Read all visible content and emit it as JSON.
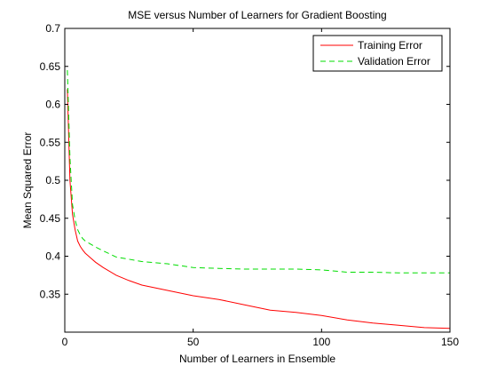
{
  "chart_data": {
    "type": "line",
    "title": "MSE versus Number of Learners for Gradient Boosting",
    "xlabel": "Number of Learners in Ensemble",
    "ylabel": "Mean Squared Error",
    "xlim": [
      0,
      150
    ],
    "ylim": [
      0.3,
      0.7
    ],
    "x_ticks": [
      0,
      50,
      100,
      150
    ],
    "x_tick_labels": [
      "0",
      "50",
      "100",
      "150"
    ],
    "y_ticks": [
      0.35,
      0.4,
      0.45,
      0.5,
      0.55,
      0.6,
      0.65,
      0.7
    ],
    "y_tick_labels": [
      "0.35",
      "0.4",
      "0.45",
      "0.5",
      "0.55",
      "0.6",
      "0.65",
      "0.7"
    ],
    "grid": false,
    "legend_position": "top-right",
    "series": [
      {
        "name": "Training Error",
        "color": "#ff0000",
        "dash": "solid",
        "x": [
          1,
          2,
          3,
          4,
          5,
          6,
          7,
          8,
          10,
          12,
          15,
          20,
          25,
          30,
          40,
          50,
          60,
          70,
          80,
          90,
          100,
          110,
          120,
          130,
          140,
          150
        ],
        "y": [
          0.62,
          0.5,
          0.455,
          0.435,
          0.42,
          0.413,
          0.408,
          0.404,
          0.398,
          0.392,
          0.385,
          0.375,
          0.368,
          0.362,
          0.355,
          0.348,
          0.343,
          0.336,
          0.329,
          0.326,
          0.322,
          0.316,
          0.312,
          0.309,
          0.306,
          0.305
        ]
      },
      {
        "name": "Validation Error",
        "color": "#00dd00",
        "dash": "dashed",
        "x": [
          1,
          2,
          3,
          4,
          5,
          6,
          7,
          8,
          10,
          12,
          15,
          20,
          25,
          30,
          40,
          50,
          60,
          70,
          80,
          90,
          100,
          110,
          120,
          130,
          140,
          150
        ],
        "y": [
          0.645,
          0.53,
          0.468,
          0.448,
          0.435,
          0.428,
          0.423,
          0.42,
          0.416,
          0.412,
          0.407,
          0.399,
          0.396,
          0.393,
          0.39,
          0.385,
          0.384,
          0.383,
          0.383,
          0.383,
          0.382,
          0.379,
          0.379,
          0.378,
          0.378,
          0.378
        ]
      }
    ]
  }
}
